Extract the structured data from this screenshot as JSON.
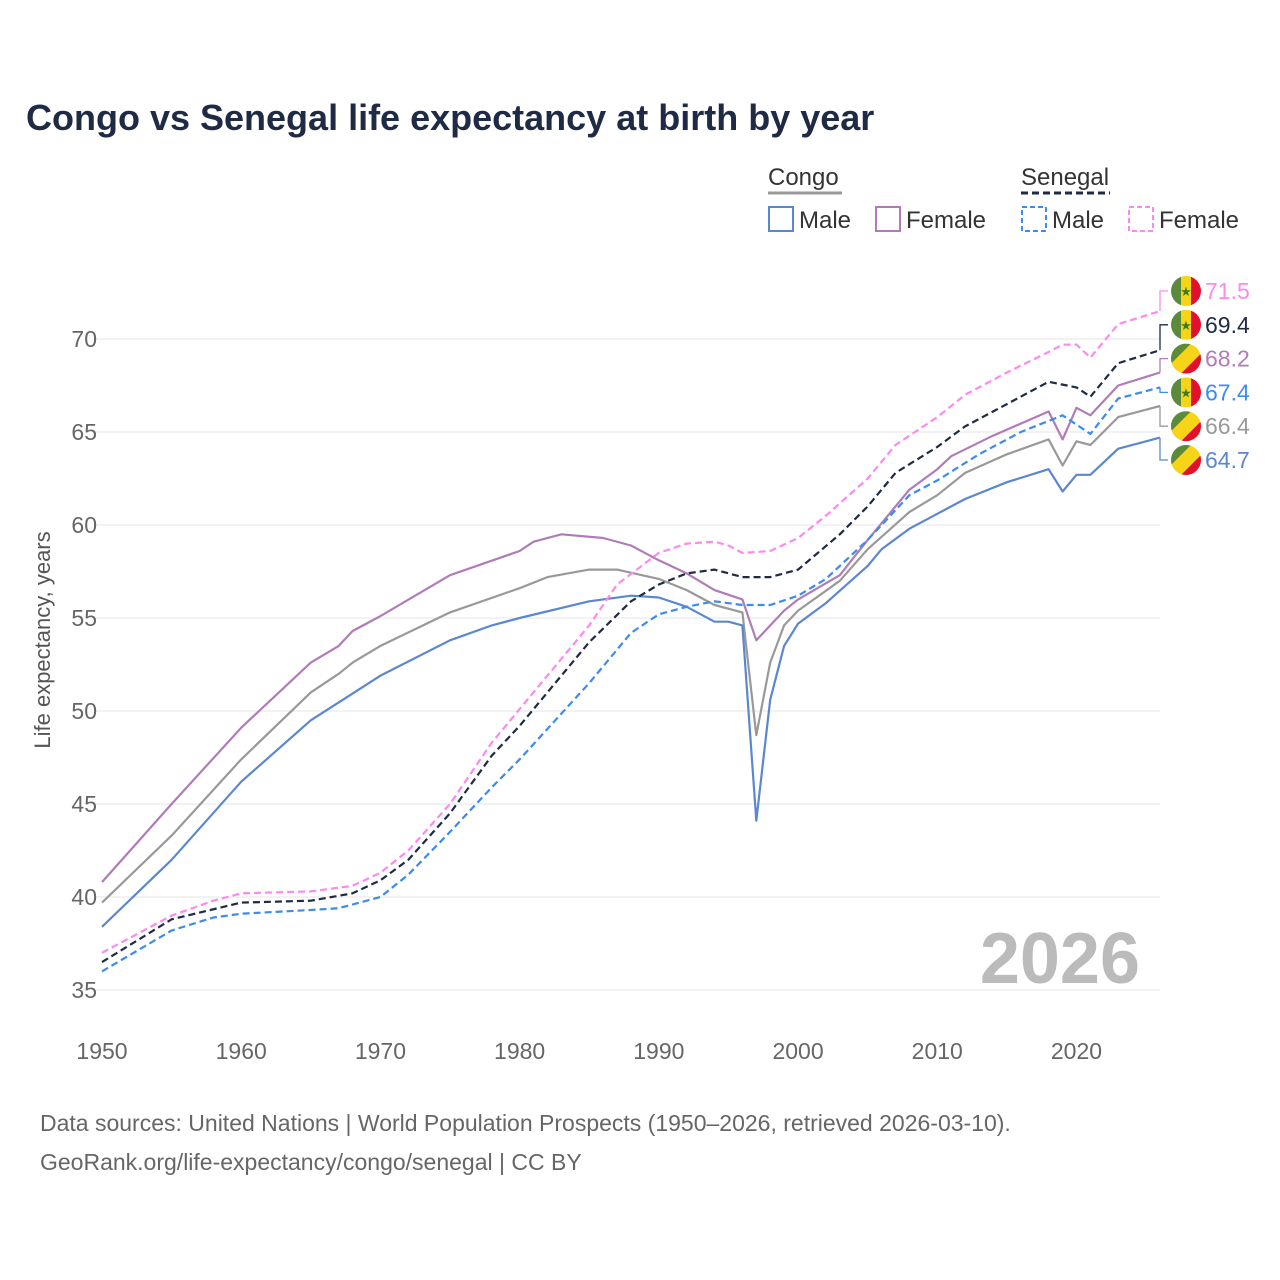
{
  "chart_data": {
    "type": "line",
    "title": "Congo vs Senegal life expectancy at birth by year",
    "xlabel": "",
    "ylabel": "Life expectancy, years",
    "xlim": [
      1950,
      2026
    ],
    "ylim": [
      35,
      72
    ],
    "x_ticks": [
      "1950",
      "1960",
      "1970",
      "1980",
      "1990",
      "2000",
      "2010",
      "2020"
    ],
    "y_ticks": [
      "35",
      "40",
      "45",
      "50",
      "55",
      "60",
      "65",
      "70"
    ],
    "grid": true,
    "watermark_year": "2026",
    "legend": {
      "placement": "top-right",
      "groups": [
        {
          "name": "Congo",
          "items": [
            "Male",
            "Female"
          ]
        },
        {
          "name": "Senegal",
          "items": [
            "Male",
            "Female"
          ]
        }
      ]
    },
    "series": [
      {
        "name": "Senegal Female",
        "country": "Senegal",
        "color": "#ff88ee",
        "dashed": true,
        "end_label": "71.5",
        "points": [
          [
            1950,
            37.0
          ],
          [
            1955,
            39.0
          ],
          [
            1958,
            39.8
          ],
          [
            1960,
            40.2
          ],
          [
            1965,
            40.3
          ],
          [
            1968,
            40.6
          ],
          [
            1970,
            41.3
          ],
          [
            1972,
            42.5
          ],
          [
            1975,
            45.0
          ],
          [
            1978,
            48.3
          ],
          [
            1980,
            50.1
          ],
          [
            1985,
            54.6
          ],
          [
            1987,
            56.8
          ],
          [
            1990,
            58.5
          ],
          [
            1992,
            59.0
          ],
          [
            1994,
            59.1
          ],
          [
            1995,
            58.9
          ],
          [
            1996,
            58.5
          ],
          [
            1998,
            58.6
          ],
          [
            2000,
            59.3
          ],
          [
            2002,
            60.5
          ],
          [
            2005,
            62.5
          ],
          [
            2007,
            64.3
          ],
          [
            2010,
            65.8
          ],
          [
            2012,
            67.0
          ],
          [
            2015,
            68.2
          ],
          [
            2018,
            69.3
          ],
          [
            2019,
            69.7
          ],
          [
            2020,
            69.7
          ],
          [
            2021,
            69.0
          ],
          [
            2023,
            70.8
          ],
          [
            2026,
            71.5
          ]
        ]
      },
      {
        "name": "Senegal",
        "country": "Senegal",
        "color": "#1f2a44",
        "dashed": true,
        "end_label": "69.4",
        "points": [
          [
            1950,
            36.5
          ],
          [
            1955,
            38.8
          ],
          [
            1960,
            39.7
          ],
          [
            1965,
            39.8
          ],
          [
            1968,
            40.2
          ],
          [
            1970,
            40.9
          ],
          [
            1972,
            42.0
          ],
          [
            1975,
            44.5
          ],
          [
            1978,
            47.6
          ],
          [
            1980,
            49.2
          ],
          [
            1985,
            53.7
          ],
          [
            1988,
            55.9
          ],
          [
            1990,
            56.8
          ],
          [
            1992,
            57.4
          ],
          [
            1994,
            57.6
          ],
          [
            1996,
            57.2
          ],
          [
            1998,
            57.2
          ],
          [
            2000,
            57.6
          ],
          [
            2003,
            59.5
          ],
          [
            2005,
            61.0
          ],
          [
            2007,
            62.8
          ],
          [
            2010,
            64.2
          ],
          [
            2012,
            65.3
          ],
          [
            2015,
            66.5
          ],
          [
            2018,
            67.7
          ],
          [
            2020,
            67.4
          ],
          [
            2021,
            66.9
          ],
          [
            2023,
            68.7
          ],
          [
            2026,
            69.4
          ]
        ]
      },
      {
        "name": "Congo Female",
        "country": "Congo",
        "color": "#b07cb8",
        "dashed": false,
        "end_label": "68.2",
        "points": [
          [
            1950,
            40.8
          ],
          [
            1955,
            45.0
          ],
          [
            1960,
            49.1
          ],
          [
            1965,
            52.6
          ],
          [
            1967,
            53.5
          ],
          [
            1968,
            54.3
          ],
          [
            1970,
            55.1
          ],
          [
            1975,
            57.3
          ],
          [
            1980,
            58.6
          ],
          [
            1981,
            59.1
          ],
          [
            1983,
            59.5
          ],
          [
            1986,
            59.3
          ],
          [
            1988,
            58.9
          ],
          [
            1990,
            58.1
          ],
          [
            1992,
            57.4
          ],
          [
            1994,
            56.5
          ],
          [
            1996,
            56.0
          ],
          [
            1997,
            53.8
          ],
          [
            1999,
            55.4
          ],
          [
            2000,
            56.0
          ],
          [
            2003,
            57.3
          ],
          [
            2005,
            59.2
          ],
          [
            2008,
            61.9
          ],
          [
            2010,
            63.0
          ],
          [
            2011,
            63.7
          ],
          [
            2014,
            64.8
          ],
          [
            2018,
            66.1
          ],
          [
            2019,
            64.6
          ],
          [
            2020,
            66.3
          ],
          [
            2021,
            65.9
          ],
          [
            2023,
            67.5
          ],
          [
            2026,
            68.2
          ]
        ]
      },
      {
        "name": "Senegal Male",
        "country": "Senegal",
        "color": "#3b8bf0",
        "dashed": true,
        "end_label": "67.4",
        "points": [
          [
            1950,
            36.0
          ],
          [
            1955,
            38.2
          ],
          [
            1958,
            38.9
          ],
          [
            1960,
            39.1
          ],
          [
            1965,
            39.3
          ],
          [
            1967,
            39.4
          ],
          [
            1970,
            40.0
          ],
          [
            1972,
            41.2
          ],
          [
            1975,
            43.5
          ],
          [
            1978,
            45.9
          ],
          [
            1980,
            47.4
          ],
          [
            1985,
            51.5
          ],
          [
            1988,
            54.2
          ],
          [
            1990,
            55.2
          ],
          [
            1992,
            55.6
          ],
          [
            1994,
            55.9
          ],
          [
            1996,
            55.7
          ],
          [
            1998,
            55.7
          ],
          [
            2000,
            56.2
          ],
          [
            2002,
            57.1
          ],
          [
            2005,
            59.2
          ],
          [
            2008,
            61.6
          ],
          [
            2010,
            62.4
          ],
          [
            2013,
            63.8
          ],
          [
            2016,
            65.0
          ],
          [
            2019,
            65.9
          ],
          [
            2021,
            64.9
          ],
          [
            2023,
            66.8
          ],
          [
            2026,
            67.4
          ]
        ]
      },
      {
        "name": "Congo",
        "country": "Congo",
        "color": "#999999",
        "dashed": false,
        "end_label": "66.4",
        "points": [
          [
            1950,
            39.7
          ],
          [
            1955,
            43.3
          ],
          [
            1960,
            47.4
          ],
          [
            1965,
            51.0
          ],
          [
            1967,
            52.0
          ],
          [
            1968,
            52.6
          ],
          [
            1970,
            53.5
          ],
          [
            1975,
            55.3
          ],
          [
            1980,
            56.6
          ],
          [
            1982,
            57.2
          ],
          [
            1985,
            57.6
          ],
          [
            1987,
            57.6
          ],
          [
            1990,
            57.1
          ],
          [
            1992,
            56.5
          ],
          [
            1994,
            55.7
          ],
          [
            1996,
            55.3
          ],
          [
            1997,
            48.7
          ],
          [
            1998,
            52.6
          ],
          [
            1999,
            54.6
          ],
          [
            2000,
            55.4
          ],
          [
            2003,
            57.0
          ],
          [
            2005,
            58.7
          ],
          [
            2008,
            60.7
          ],
          [
            2010,
            61.6
          ],
          [
            2012,
            62.8
          ],
          [
            2015,
            63.8
          ],
          [
            2018,
            64.6
          ],
          [
            2019,
            63.2
          ],
          [
            2020,
            64.5
          ],
          [
            2021,
            64.3
          ],
          [
            2023,
            65.8
          ],
          [
            2026,
            66.4
          ]
        ]
      },
      {
        "name": "Congo Male",
        "country": "Congo",
        "color": "#5b87d0",
        "dashed": false,
        "end_label": "64.7",
        "points": [
          [
            1950,
            38.4
          ],
          [
            1955,
            42.0
          ],
          [
            1960,
            46.2
          ],
          [
            1965,
            49.5
          ],
          [
            1970,
            51.9
          ],
          [
            1975,
            53.8
          ],
          [
            1978,
            54.6
          ],
          [
            1980,
            55.0
          ],
          [
            1985,
            55.9
          ],
          [
            1988,
            56.2
          ],
          [
            1990,
            56.1
          ],
          [
            1992,
            55.6
          ],
          [
            1994,
            54.8
          ],
          [
            1995,
            54.8
          ],
          [
            1996,
            54.6
          ],
          [
            1997,
            44.1
          ],
          [
            1998,
            50.6
          ],
          [
            1999,
            53.5
          ],
          [
            2000,
            54.7
          ],
          [
            2002,
            55.8
          ],
          [
            2005,
            57.8
          ],
          [
            2006,
            58.7
          ],
          [
            2008,
            59.8
          ],
          [
            2010,
            60.6
          ],
          [
            2012,
            61.4
          ],
          [
            2015,
            62.3
          ],
          [
            2018,
            63.0
          ],
          [
            2019,
            61.8
          ],
          [
            2020,
            62.7
          ],
          [
            2021,
            62.7
          ],
          [
            2023,
            64.1
          ],
          [
            2026,
            64.7
          ]
        ]
      }
    ]
  },
  "source": {
    "line1": "Data sources: United Nations | World Population Prospects (1950–2026, retrieved 2026-03-10).",
    "line2": "GeoRank.org/life-expectancy/congo/senegal | CC BY"
  }
}
